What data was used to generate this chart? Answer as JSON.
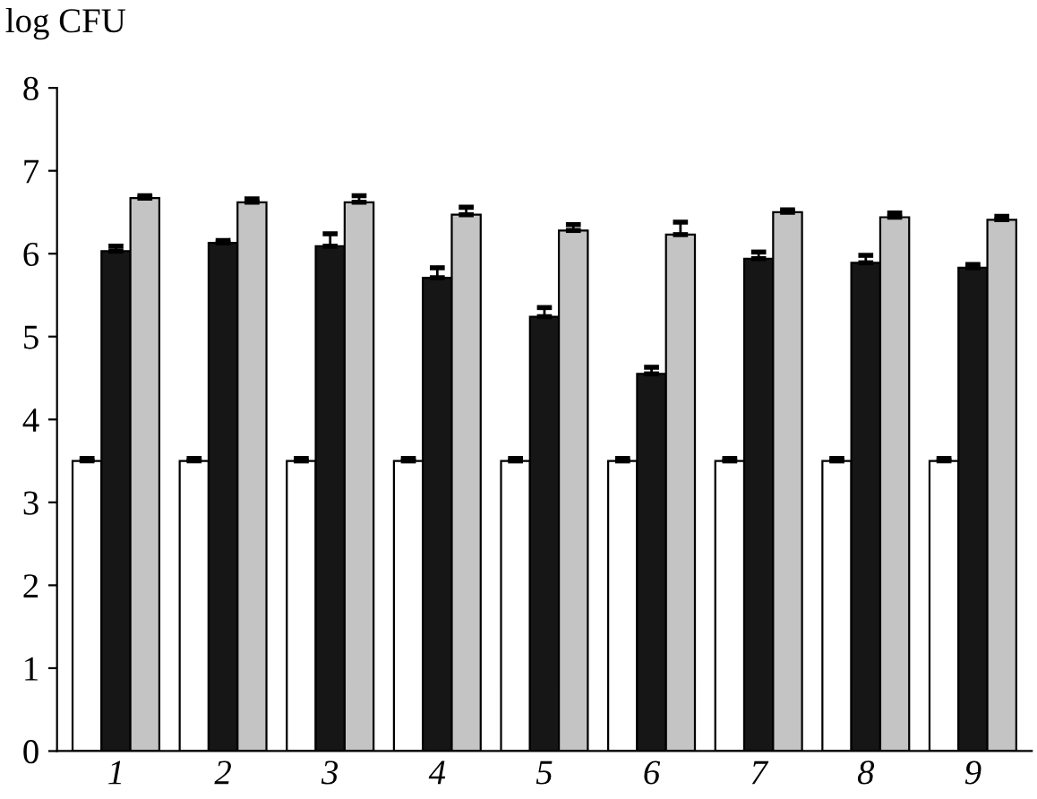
{
  "chart_data": {
    "type": "bar",
    "ylabel": "log CFU",
    "categories": [
      "1",
      "2",
      "3",
      "4",
      "5",
      "6",
      "7",
      "8",
      "9"
    ],
    "series": [
      {
        "color": "#ffffff",
        "values": [
          3.5,
          3.5,
          3.5,
          3.5,
          3.5,
          3.5,
          3.5,
          3.5,
          3.5
        ],
        "errors": [
          0.03,
          0.03,
          0.03,
          0.03,
          0.03,
          0.03,
          0.03,
          0.03,
          0.03
        ]
      },
      {
        "color": "#161616",
        "values": [
          6.03,
          6.13,
          6.09,
          5.71,
          5.24,
          4.55,
          5.94,
          5.89,
          5.83
        ],
        "errors": [
          0.06,
          0.03,
          0.15,
          0.12,
          0.11,
          0.08,
          0.08,
          0.09,
          0.04
        ]
      },
      {
        "color": "#c4c4c4",
        "values": [
          6.67,
          6.62,
          6.62,
          6.47,
          6.28,
          6.23,
          6.5,
          6.44,
          6.41
        ],
        "errors": [
          0.03,
          0.04,
          0.08,
          0.09,
          0.07,
          0.15,
          0.03,
          0.05,
          0.04
        ]
      }
    ],
    "ylim": [
      0,
      8
    ],
    "yticks": [
      0,
      1,
      2,
      3,
      4,
      5,
      6,
      7,
      8
    ],
    "grid": false,
    "legend": false
  }
}
